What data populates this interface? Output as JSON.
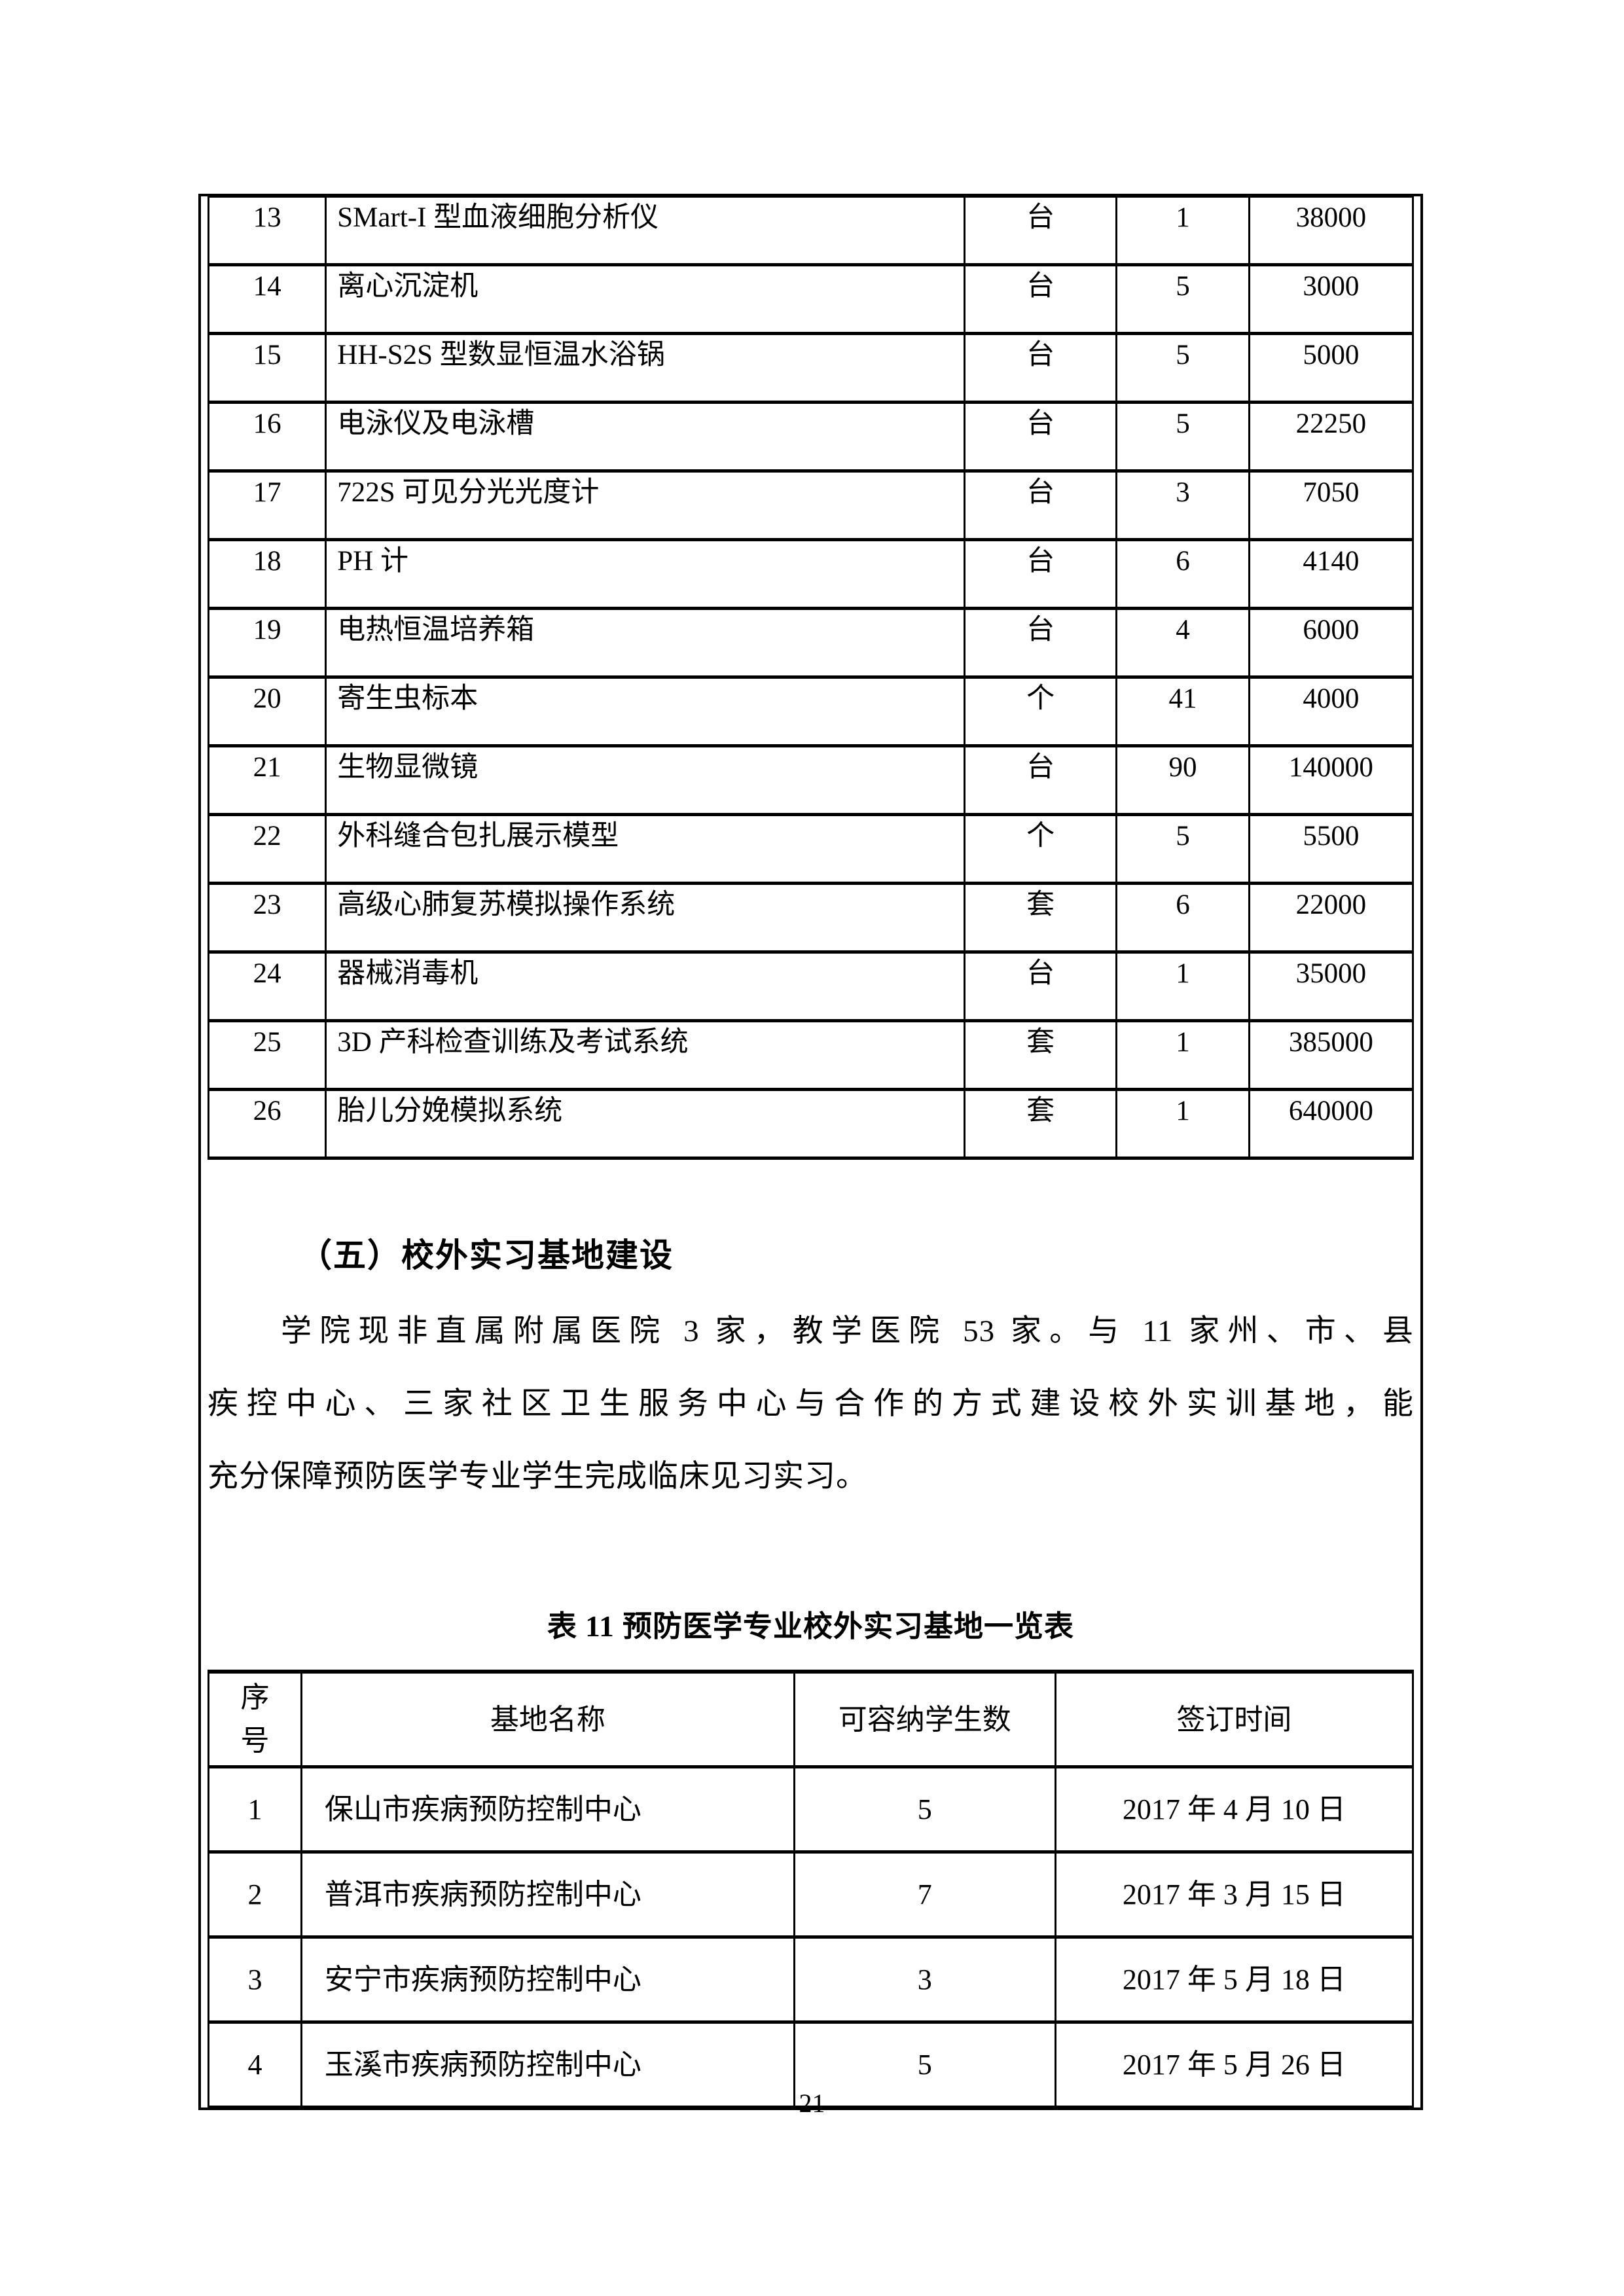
{
  "page": {
    "number": "21"
  },
  "equipment_table": {
    "rows": [
      [
        "13",
        "SMart-I 型血液细胞分析仪",
        "台",
        "1",
        "38000"
      ],
      [
        "14",
        "离心沉淀机",
        "台",
        "5",
        "3000"
      ],
      [
        "15",
        "HH-S2S 型数显恒温水浴锅",
        "台",
        "5",
        "5000"
      ],
      [
        "16",
        "电泳仪及电泳槽",
        "台",
        "5",
        "22250"
      ],
      [
        "17",
        "722S 可见分光光度计",
        "台",
        "3",
        "7050"
      ],
      [
        "18",
        "PH 计",
        "台",
        "6",
        "4140"
      ],
      [
        "19",
        "电热恒温培养箱",
        "台",
        "4",
        "6000"
      ],
      [
        "20",
        "寄生虫标本",
        "个",
        "41",
        "4000"
      ],
      [
        "21",
        "生物显微镜",
        "台",
        "90",
        "140000"
      ],
      [
        "22",
        "外科缝合包扎展示模型",
        "个",
        "5",
        "5500"
      ],
      [
        "23",
        "高级心肺复苏模拟操作系统",
        "套",
        "6",
        "22000"
      ],
      [
        "24",
        "器械消毒机",
        "台",
        "1",
        "35000"
      ],
      [
        "25",
        "3D 产科检查训练及考试系统",
        "套",
        "1",
        "385000"
      ],
      [
        "26",
        "胎儿分娩模拟系统",
        "套",
        "1",
        "640000"
      ]
    ]
  },
  "section": {
    "heading": "（五）校外实习基地建设",
    "paragraph_lines": [
      "学院现非直属附属医院 3 家，教学医院 53 家。与 11 家州、市、县",
      "疾控中心、三家社区卫生服务中心与合作的方式建设校外实训基地，能",
      "充分保障预防医学专业学生完成临床见习实习。"
    ]
  },
  "base_table": {
    "title": "表 11 预防医学专业校外实习基地一览表",
    "headers": [
      "序号",
      "基地名称",
      "可容纳学生数",
      "签订时间"
    ],
    "rows": [
      [
        "1",
        "保山市疾病预防控制中心",
        "5",
        "2017 年 4 月 10 日"
      ],
      [
        "2",
        "普洱市疾病预防控制中心",
        "7",
        "2017 年 3 月 15 日"
      ],
      [
        "3",
        "安宁市疾病预防控制中心",
        "3",
        "2017 年 5 月 18 日"
      ],
      [
        "4",
        "玉溪市疾病预防控制中心",
        "5",
        "2017 年 5 月 26 日"
      ]
    ]
  }
}
